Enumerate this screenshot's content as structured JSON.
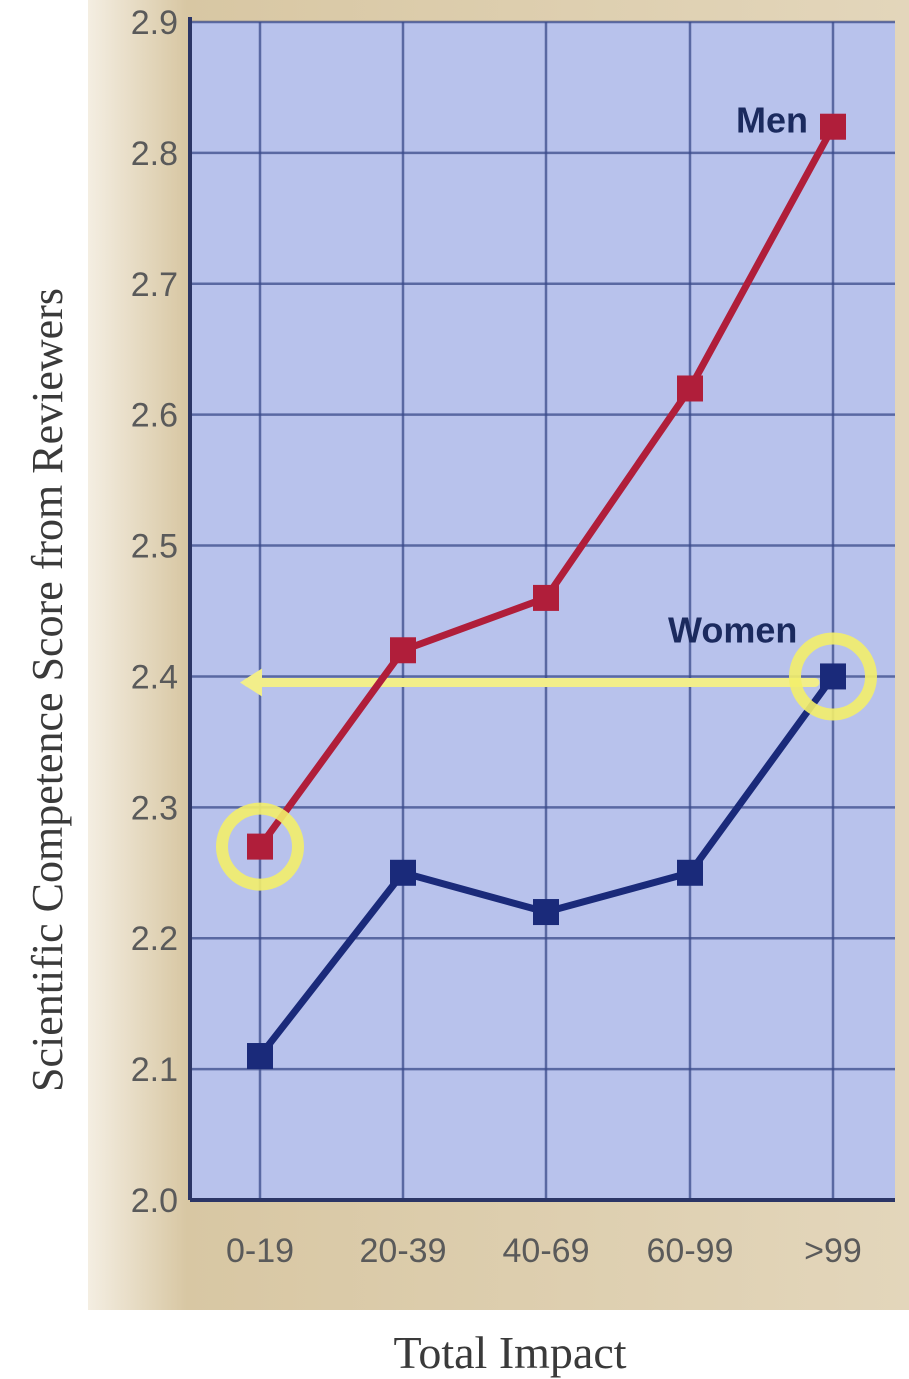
{
  "chart_data": {
    "type": "line",
    "title": "",
    "xlabel": "Total Impact",
    "ylabel": "Scientific Competence Score from Reviewers",
    "categories": [
      "0-19",
      "20-39",
      "40-69",
      "60-99",
      ">99"
    ],
    "ylim": [
      2.0,
      2.9
    ],
    "yticks": [
      "2.0",
      "2.1",
      "2.2",
      "2.3",
      "2.4",
      "2.5",
      "2.6",
      "2.7",
      "2.8",
      "2.9"
    ],
    "grid": true,
    "series": [
      {
        "name": "Men",
        "color": "#b01e3a",
        "values": [
          2.27,
          2.42,
          2.46,
          2.62,
          2.82
        ]
      },
      {
        "name": "Women",
        "color": "#1a2a7a",
        "values": [
          2.11,
          2.25,
          2.22,
          2.25,
          2.4
        ]
      }
    ],
    "annotations": {
      "reference_line_value": 2.4,
      "reference_line_color": "#f2ee8a",
      "highlight_color": "#f3ee6a",
      "highlighted_points": [
        {
          "series": "Men",
          "category": "0-19"
        },
        {
          "series": "Women",
          "category": ">99"
        }
      ]
    },
    "colors": {
      "plot_background": "#b8c2ec",
      "outer_background": "#d8c9a8",
      "grid": "#3a4a8a"
    }
  }
}
